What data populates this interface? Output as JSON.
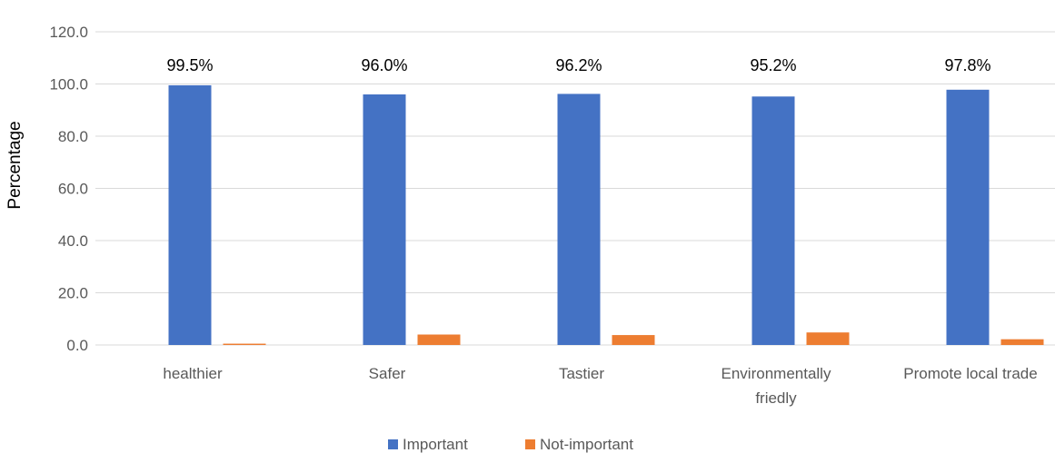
{
  "chart_data": {
    "type": "bar",
    "ylabel": "Percentage",
    "ylim": [
      0,
      120
    ],
    "yticks": [
      "0.0",
      "20.0",
      "40.0",
      "60.0",
      "80.0",
      "100.0",
      "120.0"
    ],
    "grid": true,
    "legend_position": "bottom",
    "categories": [
      [
        "healthier"
      ],
      [
        "Safer"
      ],
      [
        "Tastier"
      ],
      [
        "Environmentally",
        "friedly"
      ],
      [
        "Promote local trade"
      ]
    ],
    "series": [
      {
        "name": "Important",
        "color": "#4472c4",
        "values": [
          99.5,
          96.0,
          96.2,
          95.2,
          97.8
        ]
      },
      {
        "name": "Not-important",
        "color": "#ed7d31",
        "values": [
          0.5,
          4.0,
          3.8,
          4.8,
          2.2
        ]
      }
    ],
    "data_labels": [
      "99.5%",
      "96.0%",
      "96.2%",
      "95.2%",
      "97.8%"
    ]
  }
}
